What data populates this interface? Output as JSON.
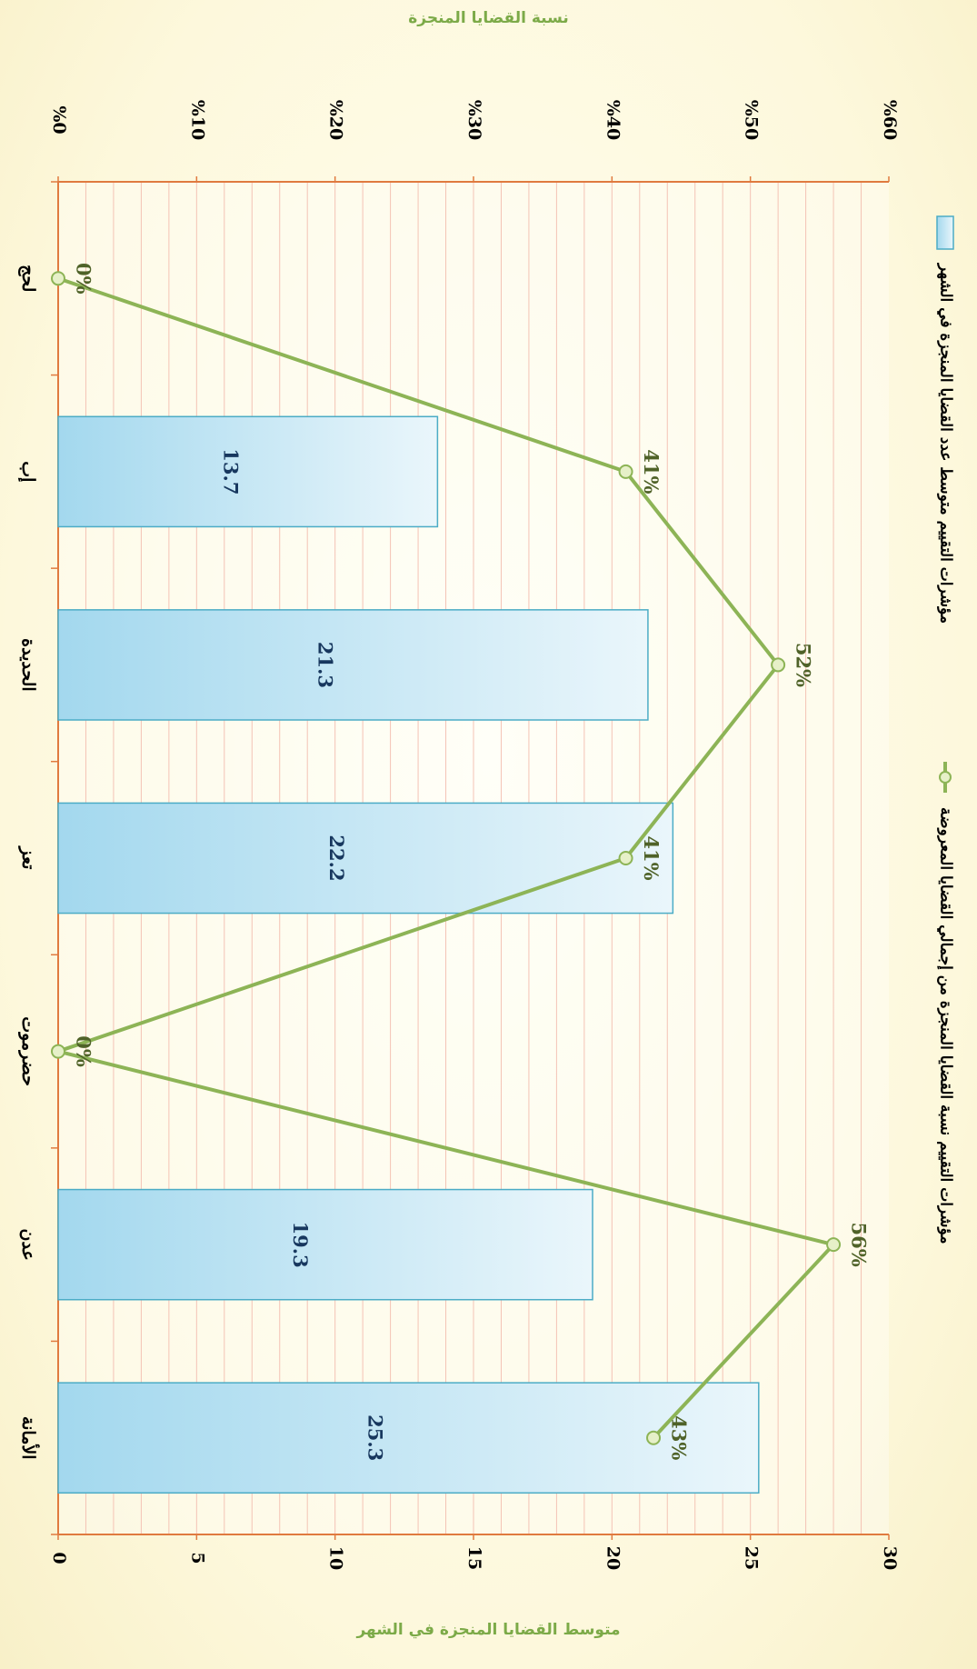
{
  "top_axis_title": "نسبة القضايا المنجزة",
  "bottom_axis_title": "متوسط القضايا المنجزة في الشهر",
  "chart_data": {
    "type": "bar",
    "orientation": "rotated-90-clockwise",
    "categories": [
      "الأمانة",
      "عدن",
      "حضرموت",
      "تعز",
      "الحديدة",
      "إب",
      "لحج"
    ],
    "series": [
      {
        "name": "مؤشرات التقييم متوسط عدد القضايا المنجزة في الشهر",
        "kind": "bar",
        "axis": "primary",
        "values": [
          25.3,
          19.3,
          null,
          22.2,
          21.3,
          13.7,
          null
        ],
        "labels": [
          "25.3",
          "19.3",
          "",
          "22.2",
          "21.3",
          "13.7",
          ""
        ]
      },
      {
        "name": "مؤشرات التقييم نسبة القضايا المنجزة من إجمالي القضايا المعروضة",
        "kind": "line",
        "axis": "secondary",
        "values": [
          0.43,
          0.56,
          0.0,
          0.41,
          0.52,
          0.41,
          0.0
        ],
        "labels": [
          "43%",
          "56%",
          "0%",
          "41%",
          "52%",
          "41%",
          "0%"
        ]
      }
    ],
    "primary_axis": {
      "min": 0,
      "max": 30,
      "ticks": [
        "0",
        "5",
        "10",
        "15",
        "20",
        "25",
        "30"
      ]
    },
    "secondary_axis": {
      "min": 0,
      "max": 0.6,
      "ticks": [
        "%0",
        "%10",
        "%20",
        "%30",
        "%40",
        "%50",
        "%60"
      ]
    },
    "legend_position": "right",
    "grid": true
  },
  "colors": {
    "bar_fill_dark": "#a3d8ee",
    "bar_fill_light": "#eaf6fb",
    "bar_stroke": "#4bacc6",
    "line": "#8db456",
    "marker_fill": "#e6f0c8",
    "axis": "#e07a3f",
    "grid": "#f4c3b5",
    "label_dark": "#17375e",
    "label_green": "#4f6228"
  }
}
